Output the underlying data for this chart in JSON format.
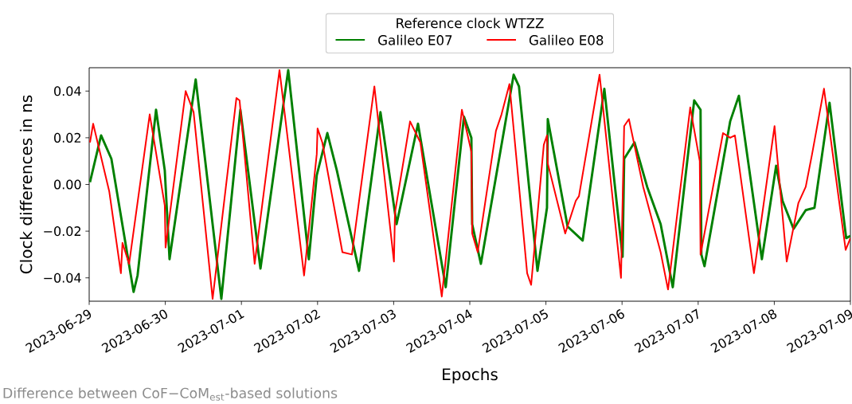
{
  "chart_data": {
    "type": "line",
    "xlabel": "Epochs",
    "ylabel": "Clock differences in ns",
    "legend_title": "Reference clock WTZZ",
    "legend": "top",
    "line_style": "solid",
    "annotations": [
      "Difference between CoF−CoM$_{est}$-based solutions"
    ],
    "xlim": [
      "2023-06-29T00:00",
      "2023-07-09T00:00"
    ],
    "xticks": [
      "2023-06-29",
      "2023-06-30",
      "2023-07-01",
      "2023-07-02",
      "2023-07-03",
      "2023-07-04",
      "2023-07-05",
      "2023-07-06",
      "2023-07-07",
      "2023-07-08",
      "2023-07-09"
    ],
    "ylim": [
      -0.05,
      0.05
    ],
    "yticks": [
      {
        "value": -0.04,
        "label": "−0.04"
      },
      {
        "value": -0.02,
        "label": "−0.02"
      },
      {
        "value": 0,
        "label": "0.00"
      },
      {
        "value": 0.02,
        "label": "0.02"
      },
      {
        "value": 0.04,
        "label": "0.04"
      }
    ],
    "series": [
      {
        "name": "Galileo E07",
        "color": "#008000",
        "x": [
          "2023-06-29T00:15",
          "2023-06-29T03:45",
          "2023-06-29T07:00",
          "2023-06-29T14:00",
          "2023-06-29T15:15",
          "2023-06-29T21:05",
          "2023-06-29T23:50",
          "2023-06-30T01:20",
          "2023-06-30T09:35",
          "2023-06-30T17:40",
          "2023-06-30T23:40",
          "2023-07-01T06:00",
          "2023-07-01T14:45",
          "2023-07-01T21:15",
          "2023-07-01T23:45",
          "2023-07-02T03:05",
          "2023-07-02T06:05",
          "2023-07-02T13:05",
          "2023-07-02T19:50",
          "2023-07-03T00:55",
          "2023-07-03T07:40",
          "2023-07-03T16:25",
          "2023-07-03T22:10",
          "2023-07-04T00:30",
          "2023-07-04T00:45",
          "2023-07-04T03:30",
          "2023-07-04T13:50",
          "2023-07-04T15:30",
          "2023-07-04T21:20",
          "2023-07-05T00:20",
          "2023-07-05T00:35",
          "2023-07-05T06:50",
          "2023-07-05T11:35",
          "2023-07-05T18:25",
          "2023-07-06T00:10",
          "2023-07-06T00:40",
          "2023-07-06T03:55",
          "2023-07-06T07:55",
          "2023-07-06T12:10",
          "2023-07-06T16:00",
          "2023-07-06T22:45",
          "2023-07-07T00:45",
          "2023-07-07T01:00",
          "2023-07-07T02:00",
          "2023-07-07T10:05",
          "2023-07-07T12:50",
          "2023-07-07T20:05",
          "2023-07-08T00:35",
          "2023-07-08T02:35",
          "2023-07-08T06:05",
          "2023-07-08T09:55",
          "2023-07-08T12:40",
          "2023-07-08T17:25",
          "2023-07-08T22:40",
          "2023-07-09T00:00"
        ],
        "values": [
          0.001,
          0.021,
          0.011,
          -0.046,
          -0.039,
          0.032,
          0.006,
          -0.032,
          0.045,
          -0.049,
          0.032,
          -0.036,
          0.049,
          -0.032,
          0.004,
          0.022,
          0.006,
          -0.037,
          0.031,
          -0.017,
          0.026,
          -0.044,
          0.029,
          0.02,
          -0.017,
          -0.034,
          0.047,
          0.042,
          -0.037,
          -0.01,
          0.028,
          -0.018,
          -0.024,
          0.041,
          -0.031,
          0.011,
          0.018,
          -0.001,
          -0.017,
          -0.044,
          0.036,
          0.032,
          -0.03,
          -0.035,
          0.027,
          0.038,
          -0.032,
          0.008,
          -0.007,
          -0.019,
          -0.011,
          -0.01,
          0.035,
          -0.023,
          -0.022
        ]
      },
      {
        "name": "Galileo E08",
        "color": "#ff0000",
        "x": [
          "2023-06-29T00:15",
          "2023-06-29T01:15",
          "2023-06-29T06:20",
          "2023-06-29T10:00",
          "2023-06-29T10:30",
          "2023-06-29T12:35",
          "2023-06-29T19:05",
          "2023-06-29T23:50",
          "2023-06-30T00:05",
          "2023-06-30T06:25",
          "2023-06-30T08:55",
          "2023-06-30T14:55",
          "2023-06-30T22:25",
          "2023-06-30T23:25",
          "2023-07-01T04:10",
          "2023-07-01T12:00",
          "2023-07-01T19:45",
          "2023-07-01T23:45",
          "2023-07-02T00:00",
          "2023-07-02T01:30",
          "2023-07-02T07:50",
          "2023-07-02T10:50",
          "2023-07-02T17:55",
          "2023-07-03T00:05",
          "2023-07-03T00:25",
          "2023-07-03T05:10",
          "2023-07-03T08:25",
          "2023-07-03T15:10",
          "2023-07-03T21:30",
          "2023-07-04T00:30",
          "2023-07-04T00:45",
          "2023-07-04T02:30",
          "2023-07-04T08:15",
          "2023-07-04T10:00",
          "2023-07-04T12:30",
          "2023-07-04T18:05",
          "2023-07-04T19:20",
          "2023-07-04T23:20",
          "2023-07-05T00:20",
          "2023-07-05T00:35",
          "2023-07-05T06:05",
          "2023-07-05T09:25",
          "2023-07-05T10:25",
          "2023-07-05T16:55",
          "2023-07-05T23:40",
          "2023-07-06T00:40",
          "2023-07-06T02:10",
          "2023-07-06T06:40",
          "2023-07-06T12:10",
          "2023-07-06T14:30",
          "2023-07-06T21:30",
          "2023-07-07T00:30",
          "2023-07-07T00:45",
          "2023-07-07T07:50",
          "2023-07-07T10:05",
          "2023-07-07T11:35",
          "2023-07-07T17:35",
          "2023-07-08T00:05",
          "2023-07-08T00:35",
          "2023-07-08T03:55",
          "2023-07-08T07:35",
          "2023-07-08T09:55",
          "2023-07-08T11:55",
          "2023-07-08T15:40",
          "2023-07-08T22:30",
          "2023-07-09T00:00"
        ],
        "values": [
          0.018,
          0.026,
          -0.003,
          -0.038,
          -0.025,
          -0.034,
          0.03,
          -0.009,
          -0.027,
          0.04,
          0.031,
          -0.049,
          0.037,
          0.036,
          -0.034,
          0.049,
          -0.039,
          0.013,
          0.024,
          0.018,
          -0.029,
          -0.03,
          0.042,
          -0.033,
          -0.012,
          0.027,
          0.018,
          -0.048,
          0.032,
          0.014,
          -0.021,
          -0.029,
          0.023,
          0.03,
          0.043,
          -0.038,
          -0.043,
          0.017,
          0.021,
          0.009,
          -0.021,
          -0.007,
          -0.005,
          0.047,
          -0.04,
          0.025,
          0.028,
          -0.001,
          -0.029,
          -0.045,
          0.033,
          0.01,
          -0.03,
          0.022,
          0.02,
          0.021,
          -0.038,
          0.025,
          0.017,
          -0.033,
          -0.008,
          -0.001,
          0.013,
          0.041,
          -0.028,
          -0.023
        ]
      }
    ]
  }
}
